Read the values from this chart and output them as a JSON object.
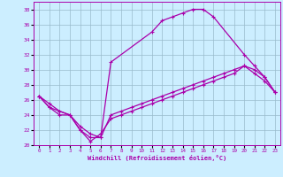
{
  "xlabel": "Windchill (Refroidissement éolien,°C)",
  "bg_color": "#cceeff",
  "line_color": "#aa00aa",
  "grid_color": "#99bbcc",
  "xlim": [
    -0.5,
    23.5
  ],
  "ylim": [
    20,
    39
  ],
  "xticks": [
    0,
    1,
    2,
    3,
    4,
    5,
    6,
    7,
    8,
    9,
    10,
    11,
    12,
    13,
    14,
    15,
    16,
    17,
    18,
    19,
    20,
    21,
    22,
    23
  ],
  "yticks": [
    20,
    22,
    24,
    26,
    28,
    30,
    32,
    34,
    36,
    38
  ],
  "line1_x": [
    0,
    1,
    2,
    3,
    4,
    5,
    6,
    7,
    11,
    12,
    13,
    14,
    15,
    16,
    17,
    20,
    21,
    22,
    23
  ],
  "line1_y": [
    26.5,
    25.5,
    24.5,
    24,
    22,
    21,
    21,
    31,
    35,
    36.5,
    37,
    37.5,
    38,
    38,
    37,
    32,
    30.5,
    29,
    27
  ],
  "line2_x": [
    0,
    1,
    2,
    3,
    4,
    5,
    6,
    7,
    8,
    9,
    10,
    11,
    12,
    13,
    14,
    15,
    16,
    17,
    18,
    19,
    20,
    21,
    22,
    23
  ],
  "line2_y": [
    26.5,
    25.0,
    24.5,
    24,
    22.5,
    21.5,
    21,
    24,
    24.5,
    25,
    25.5,
    26,
    26.5,
    27,
    27.5,
    28,
    28.5,
    29,
    29.5,
    30,
    30.5,
    29.5,
    28.5,
    27
  ],
  "line3_x": [
    0,
    1,
    2,
    3,
    4,
    5,
    6,
    7,
    8,
    9,
    10,
    11,
    12,
    13,
    14,
    15,
    16,
    17,
    18,
    19,
    20,
    21,
    22,
    23
  ],
  "line3_y": [
    26.5,
    25.0,
    24,
    24,
    22,
    20.5,
    21.5,
    23.5,
    24,
    24.5,
    25,
    25.5,
    26,
    26.5,
    27,
    27.5,
    28,
    28.5,
    29,
    29.5,
    30.5,
    30,
    29,
    27
  ]
}
